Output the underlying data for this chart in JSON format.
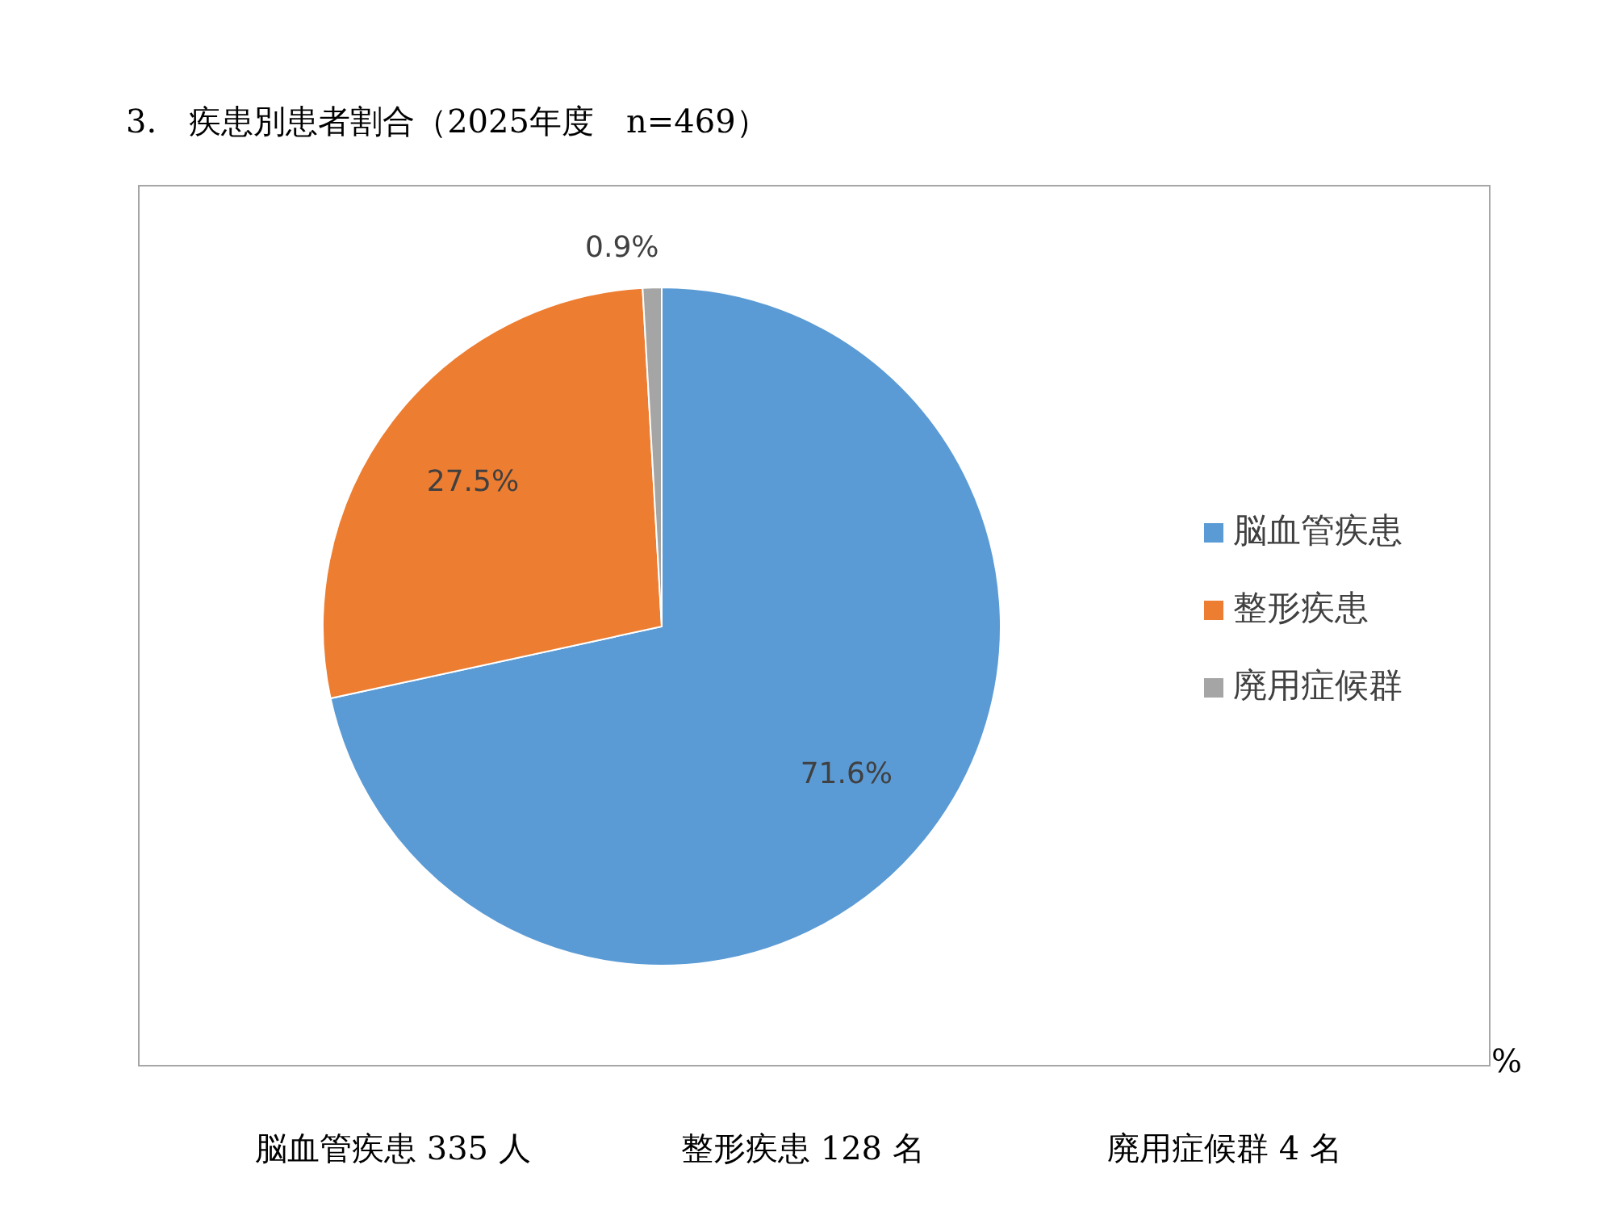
{
  "chart_data": {
    "type": "pie",
    "title": "3.　疾患別患者割合（2025年度　n=469）",
    "categories": [
      "脳血管疾患",
      "整形疾患",
      "廃用症候群"
    ],
    "values": [
      71.6,
      27.5,
      0.9
    ],
    "colors": [
      "#5b9bd5",
      "#ed7d31",
      "#a5a5a5"
    ],
    "value_labels": [
      "71.6%",
      "27.5%",
      "0.9%"
    ],
    "legend": "right",
    "annotations": [
      "%",
      "脳血管疾患 335 人",
      "整形疾患 128 名",
      "廃用症候群 4 名"
    ]
  }
}
